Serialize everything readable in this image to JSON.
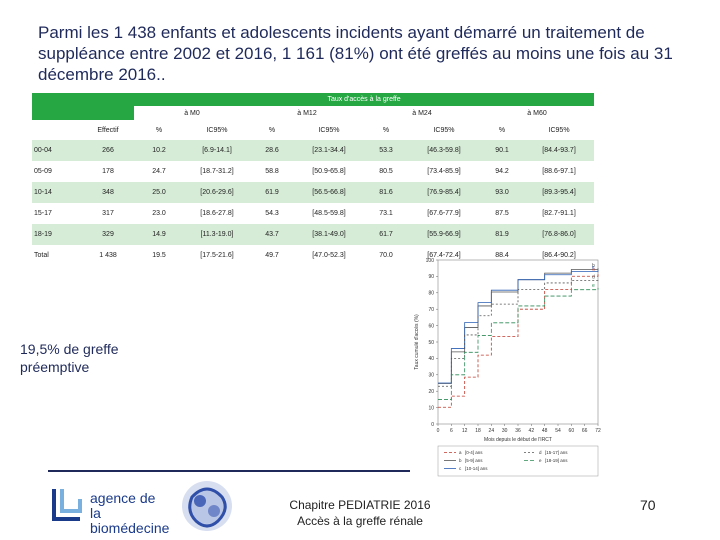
{
  "slide": {
    "title": "Parmi les 1 438 enfants et adolescents incidents ayant démarré un traitement de suppléance entre 2002 et 2016, 1 161 (81%) ont été greffés au moins une fois au 31 décembre 2016..",
    "note": "19,5% de greffe préemptive",
    "footer_line1": "Chapitre PEDIATRIE 2016",
    "footer_line2": "Accès à la greffe rénale",
    "page_number": "70"
  },
  "logo": {
    "line1": "agence de la",
    "line2": "biomédecine",
    "color": "#1a3a8a"
  },
  "table": {
    "super_header": "Taux d'accès à la greffe",
    "periods": [
      "à M0",
      "à M12",
      "à M24",
      "à M60"
    ],
    "columns": [
      "Effectif",
      "%",
      "IC95%",
      "%",
      "IC95%",
      "%",
      "IC95%",
      "%",
      "IC95%"
    ],
    "rows": [
      {
        "label": "00-04",
        "cells": [
          "266",
          "10.2",
          "[6.9-14.1]",
          "28.6",
          "[23.1-34.4]",
          "53.3",
          "[46.3-59.8]",
          "90.1",
          "[84.4-93.7]"
        ]
      },
      {
        "label": "05-09",
        "cells": [
          "178",
          "24.7",
          "[18.7-31.2]",
          "58.8",
          "[50.9-65.8]",
          "80.5",
          "[73.4-85.9]",
          "94.2",
          "[88.6-97.1]"
        ]
      },
      {
        "label": "10-14",
        "cells": [
          "348",
          "25.0",
          "[20.6-29.6]",
          "61.9",
          "[56.5-66.8]",
          "81.6",
          "[76.9-85.4]",
          "93.0",
          "[89.3-95.4]"
        ]
      },
      {
        "label": "15-17",
        "cells": [
          "317",
          "23.0",
          "[18.6-27.8]",
          "54.3",
          "[48.5-59.8]",
          "73.1",
          "[67.6-77.9]",
          "87.5",
          "[82.7-91.1]"
        ]
      },
      {
        "label": "18-19",
        "cells": [
          "329",
          "14.9",
          "[11.3-19.0]",
          "43.7",
          "[38.1-49.0]",
          "61.7",
          "[55.9-66.9]",
          "81.9",
          "[76.8-86.0]"
        ]
      },
      {
        "label": "Total",
        "cells": [
          "1 438",
          "19.5",
          "[17.5-21.6]",
          "49.7",
          "[47.0-52.3]",
          "70.0",
          "[67.4-72.4]",
          "88.4",
          "[86.4-90.2]"
        ]
      }
    ],
    "header_color": "#27a744",
    "stripe_color": "#d6ecd7"
  },
  "chart_data": {
    "type": "line",
    "ylabel": "Taux cumulé d'accès (%)",
    "xlabel": "Mois depuis le début de l'IRCT",
    "x_ticks": [
      "0",
      "6",
      "12",
      "18",
      "24",
      "30",
      "36",
      "42",
      "48",
      "54",
      "60",
      "66",
      "72"
    ],
    "y_ticks": [
      "0",
      "10",
      "20",
      "30",
      "40",
      "50",
      "60",
      "70",
      "80",
      "90",
      "100"
    ],
    "xlim": [
      0,
      72
    ],
    "ylim": [
      0,
      100
    ],
    "series": [
      {
        "name": "[0-4] ans",
        "marker": "a",
        "color": "#c0392b",
        "dash": "3,2",
        "x": [
          0,
          6,
          12,
          18,
          24,
          36,
          48,
          60,
          72
        ],
        "y": [
          10.2,
          17,
          28.6,
          42,
          53.3,
          70,
          82,
          90.1,
          93
        ]
      },
      {
        "name": "[5-9] ans",
        "marker": "b",
        "color": "#555555",
        "dash": "",
        "x": [
          0,
          6,
          12,
          18,
          24,
          36,
          48,
          60,
          72
        ],
        "y": [
          24.7,
          44,
          58.8,
          72,
          80.5,
          88,
          92,
          94.2,
          95
        ]
      },
      {
        "name": "[10-14] ans",
        "marker": "c",
        "color": "#2b5fb4",
        "dash": "",
        "x": [
          0,
          6,
          12,
          18,
          24,
          36,
          48,
          60,
          72
        ],
        "y": [
          25.0,
          46,
          61.9,
          74,
          81.6,
          88,
          91,
          93.0,
          94
        ]
      },
      {
        "name": "[15-17] ans",
        "marker": "d",
        "color": "#555555",
        "dash": "2,2",
        "x": [
          0,
          6,
          12,
          18,
          24,
          36,
          48,
          60,
          72
        ],
        "y": [
          23.0,
          40,
          54.3,
          66,
          73.1,
          82,
          86,
          87.5,
          88
        ]
      },
      {
        "name": "[18-19] ans",
        "marker": "e",
        "color": "#2e8b57",
        "dash": "4,2",
        "x": [
          0,
          6,
          12,
          18,
          24,
          36,
          48,
          60,
          72
        ],
        "y": [
          14.9,
          30,
          43.7,
          54,
          61.7,
          72,
          78,
          81.9,
          83
        ]
      }
    ]
  }
}
